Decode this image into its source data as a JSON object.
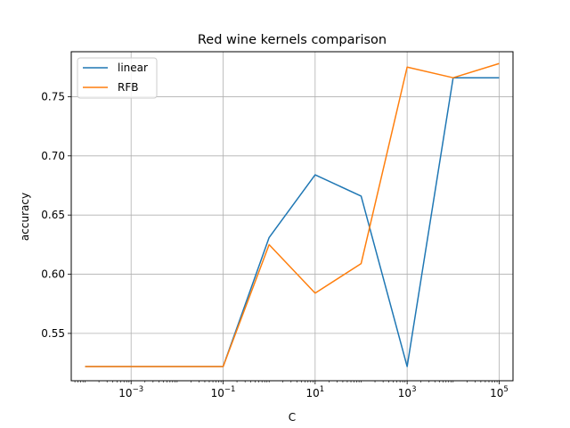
{
  "chart_data": {
    "type": "line",
    "title": "Red wine kernels comparison",
    "xlabel": "C",
    "ylabel": "accuracy",
    "xscale": "log",
    "x": [
      0.0001,
      0.001,
      0.01,
      0.1,
      1,
      10,
      100,
      1000,
      10000,
      100000
    ],
    "xlim": [
      5e-05,
      200000
    ],
    "ylim": [
      0.51,
      0.788
    ],
    "xticks": [
      {
        "value": 0.001,
        "base": "10",
        "exp": "−3"
      },
      {
        "value": 0.1,
        "base": "10",
        "exp": "−1"
      },
      {
        "value": 10,
        "base": "10",
        "exp": "1"
      },
      {
        "value": 1000,
        "base": "10",
        "exp": "3"
      },
      {
        "value": 100000,
        "base": "10",
        "exp": "5"
      }
    ],
    "yticks": [
      {
        "value": 0.55,
        "label": "0.55"
      },
      {
        "value": 0.6,
        "label": "0.60"
      },
      {
        "value": 0.65,
        "label": "0.65"
      },
      {
        "value": 0.7,
        "label": "0.70"
      },
      {
        "value": 0.75,
        "label": "0.75"
      }
    ],
    "grid": true,
    "legend_position": "upper-left",
    "series": [
      {
        "name": "linear",
        "color": "#1f77b4",
        "values": [
          0.522,
          0.522,
          0.522,
          0.522,
          0.631,
          0.684,
          0.666,
          0.522,
          0.766,
          0.766
        ]
      },
      {
        "name": "RFB",
        "color": "#ff7f0e",
        "values": [
          0.522,
          0.522,
          0.522,
          0.522,
          0.625,
          0.584,
          0.609,
          0.775,
          0.766,
          0.778
        ]
      }
    ]
  }
}
